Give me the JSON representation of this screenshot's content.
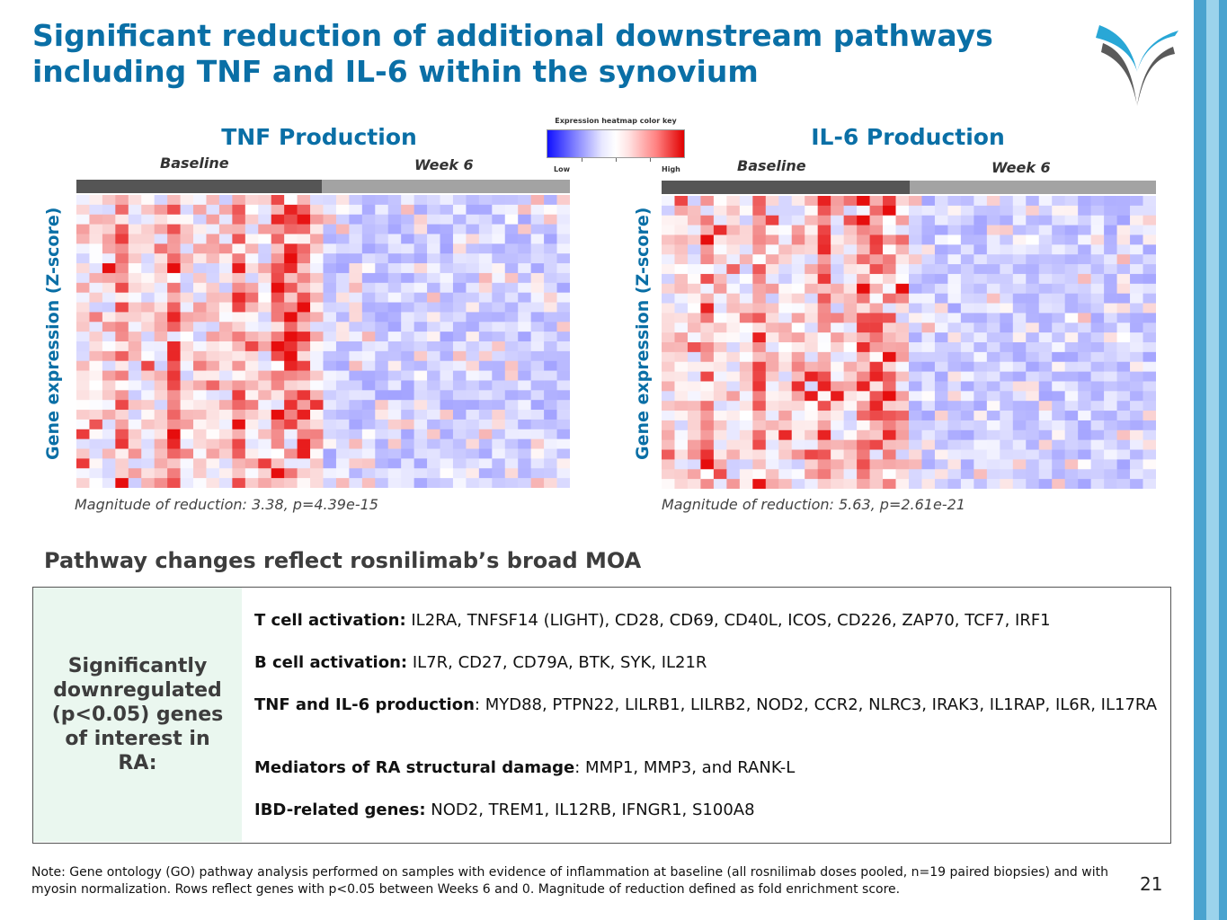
{
  "title": "Significant reduction of additional downstream pathways including TNF and IL-6 within the synovium",
  "colors": {
    "accent": "#0a6fa6",
    "baseline_bar": "#555555",
    "week6_bar": "#a3a3a3",
    "low": "#1010ff",
    "high": "#e00000"
  },
  "color_key": {
    "title": "Expression heatmap color key",
    "low": "Low",
    "high": "High"
  },
  "panels": [
    {
      "title": "TNF Production",
      "baseline_label": "Baseline",
      "week6_label": "Week 6",
      "ylabel": "Gene expression (Z-score)",
      "magnitude": "Magnitude of reduction: 3.38, p=4.39e-15"
    },
    {
      "title": "IL-6 Production",
      "baseline_label": "Baseline",
      "week6_label": "Week 6",
      "ylabel": "Gene expression (Z-score)",
      "magnitude": "Magnitude of reduction: 5.63, p=2.61e-21"
    }
  ],
  "chart_data": [
    {
      "type": "heatmap",
      "title": "TNF Production",
      "ylabel": "Gene expression (Z-score)",
      "groups": [
        "Baseline",
        "Week 6"
      ],
      "rows": 30,
      "baseline_columns": 19,
      "week6_columns": 19,
      "hot_baseline_columns": [
        3,
        7,
        12,
        15,
        16,
        17
      ],
      "magnitude_of_reduction": 3.38,
      "p_value": "4.39e-15"
    },
    {
      "type": "heatmap",
      "title": "IL-6 Production",
      "ylabel": "Gene expression (Z-score)",
      "groups": [
        "Baseline",
        "Week 6"
      ],
      "rows": 30,
      "baseline_columns": 19,
      "week6_columns": 19,
      "hot_baseline_columns": [
        3,
        7,
        12,
        15,
        16,
        17
      ],
      "magnitude_of_reduction": 5.63,
      "p_value": "2.61e-21"
    }
  ],
  "subhead": "Pathway changes reflect rosnilimab’s broad MOA",
  "box": {
    "left_label": "Significantly downregulated (p<0.05) genes of interest in RA:",
    "items": [
      {
        "label": "T cell activation:",
        "genes": " IL2RA, TNFSF14 (LIGHT), CD28, CD69, CD40L, ICOS, CD226, ZAP70, TCF7, IRF1"
      },
      {
        "label": "B cell activation:",
        "genes": " IL7R, CD27, CD79A, BTK, SYK, IL21R"
      },
      {
        "label": "TNF and IL-6 production",
        "genes": ": MYD88, PTPN22, LILRB1, LILRB2, NOD2, CCR2, NLRC3, IRAK3, IL1RAP, IL6R, IL17RA"
      },
      {
        "label": "Mediators of RA structural damage",
        "genes": ": MMP1, MMP3, and RANK-L"
      },
      {
        "label": "IBD-related genes:",
        "genes": " NOD2, TREM1, IL12RB, IFNGR1, S100A8"
      }
    ]
  },
  "note": "Note: Gene ontology (GO) pathway analysis performed on samples with evidence of inflammation at baseline (all rosnilimab doses pooled, n=19 paired biopsies) and with myosin normalization. Rows reflect genes with p<0.05 between Weeks 6 and 0.  Magnitude of reduction defined as fold enrichment score.",
  "page_number": "21"
}
